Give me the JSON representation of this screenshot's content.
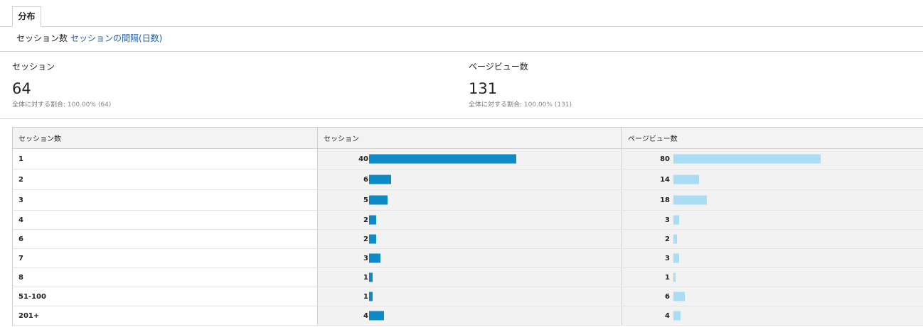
{
  "tab": {
    "label": "分布"
  },
  "subnav": {
    "active": "セッション数",
    "link": "セッションの間隔(日数)"
  },
  "metrics": [
    {
      "label": "セッション",
      "value": "64",
      "pct_prefix": "全体に対する割合:",
      "pct_value": "100.00% (64)"
    },
    {
      "label": "ページビュー数",
      "value": "131",
      "pct_prefix": "全体に対する割合:",
      "pct_value": "100.00% (131)"
    }
  ],
  "table": {
    "headers": [
      "セッション数",
      "セッション",
      "ページビュー数"
    ],
    "rows": [
      {
        "label": "1",
        "sessions": 40,
        "pageviews": 80
      },
      {
        "label": "2",
        "sessions": 6,
        "pageviews": 14
      },
      {
        "label": "3",
        "sessions": 5,
        "pageviews": 18
      },
      {
        "label": "4",
        "sessions": 2,
        "pageviews": 3
      },
      {
        "label": "6",
        "sessions": 2,
        "pageviews": 2
      },
      {
        "label": "7",
        "sessions": 3,
        "pageviews": 3
      },
      {
        "label": "8",
        "sessions": 1,
        "pageviews": 1
      },
      {
        "label": "51-100",
        "sessions": 1,
        "pageviews": 6
      },
      {
        "label": "201+",
        "sessions": 4,
        "pageviews": 4
      }
    ]
  },
  "colors": {
    "sessions_bar": "#0e8ac6",
    "pageviews_bar": "#a8ddf3",
    "link": "#1a5b9e"
  }
}
